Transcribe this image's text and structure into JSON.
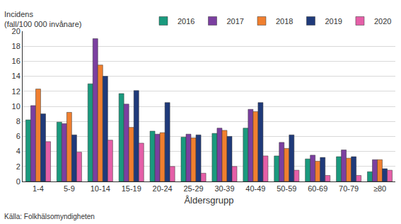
{
  "chart_data": {
    "type": "bar",
    "y_label": "Incidens\n(fall/100 000 invånare)",
    "x_label": "Åldersgrupp",
    "source": "Källa: Folkhälsomyndigheten",
    "categories": [
      "1-4",
      "5-9",
      "10-14",
      "15-19",
      "20-24",
      "25-29",
      "30-39",
      "40-49",
      "50-59",
      "60-69",
      "70-79",
      "≥80"
    ],
    "series": [
      {
        "name": "2016",
        "color": "#1a9a7e",
        "values": [
          8.2,
          7.9,
          13.0,
          11.7,
          6.7,
          5.9,
          6.4,
          7.1,
          3.4,
          3.0,
          3.3,
          1.3
        ]
      },
      {
        "name": "2017",
        "color": "#7b3fa0",
        "values": [
          10.1,
          7.7,
          19.0,
          10.3,
          6.3,
          6.3,
          7.1,
          9.6,
          5.2,
          3.5,
          4.2,
          2.9
        ]
      },
      {
        "name": "2018",
        "color": "#f07f2f",
        "values": [
          12.3,
          9.2,
          15.5,
          7.2,
          6.5,
          5.8,
          6.8,
          9.3,
          4.4,
          2.7,
          3.1,
          2.9
        ]
      },
      {
        "name": "2019",
        "color": "#1f3a7a",
        "values": [
          9.0,
          6.2,
          14.0,
          12.1,
          10.5,
          6.2,
          6.0,
          10.5,
          6.2,
          3.2,
          3.3,
          1.7
        ]
      },
      {
        "name": "2020",
        "color": "#e55fa8",
        "values": [
          5.3,
          3.9,
          5.5,
          5.1,
          2.0,
          1.1,
          2.0,
          3.4,
          1.5,
          0.8,
          0.8,
          1.5
        ]
      }
    ],
    "ylim": [
      0,
      20
    ],
    "yticks": [
      0,
      2,
      4,
      6,
      8,
      10,
      12,
      14,
      16,
      18,
      20
    ],
    "grid": true,
    "legend": "top"
  }
}
